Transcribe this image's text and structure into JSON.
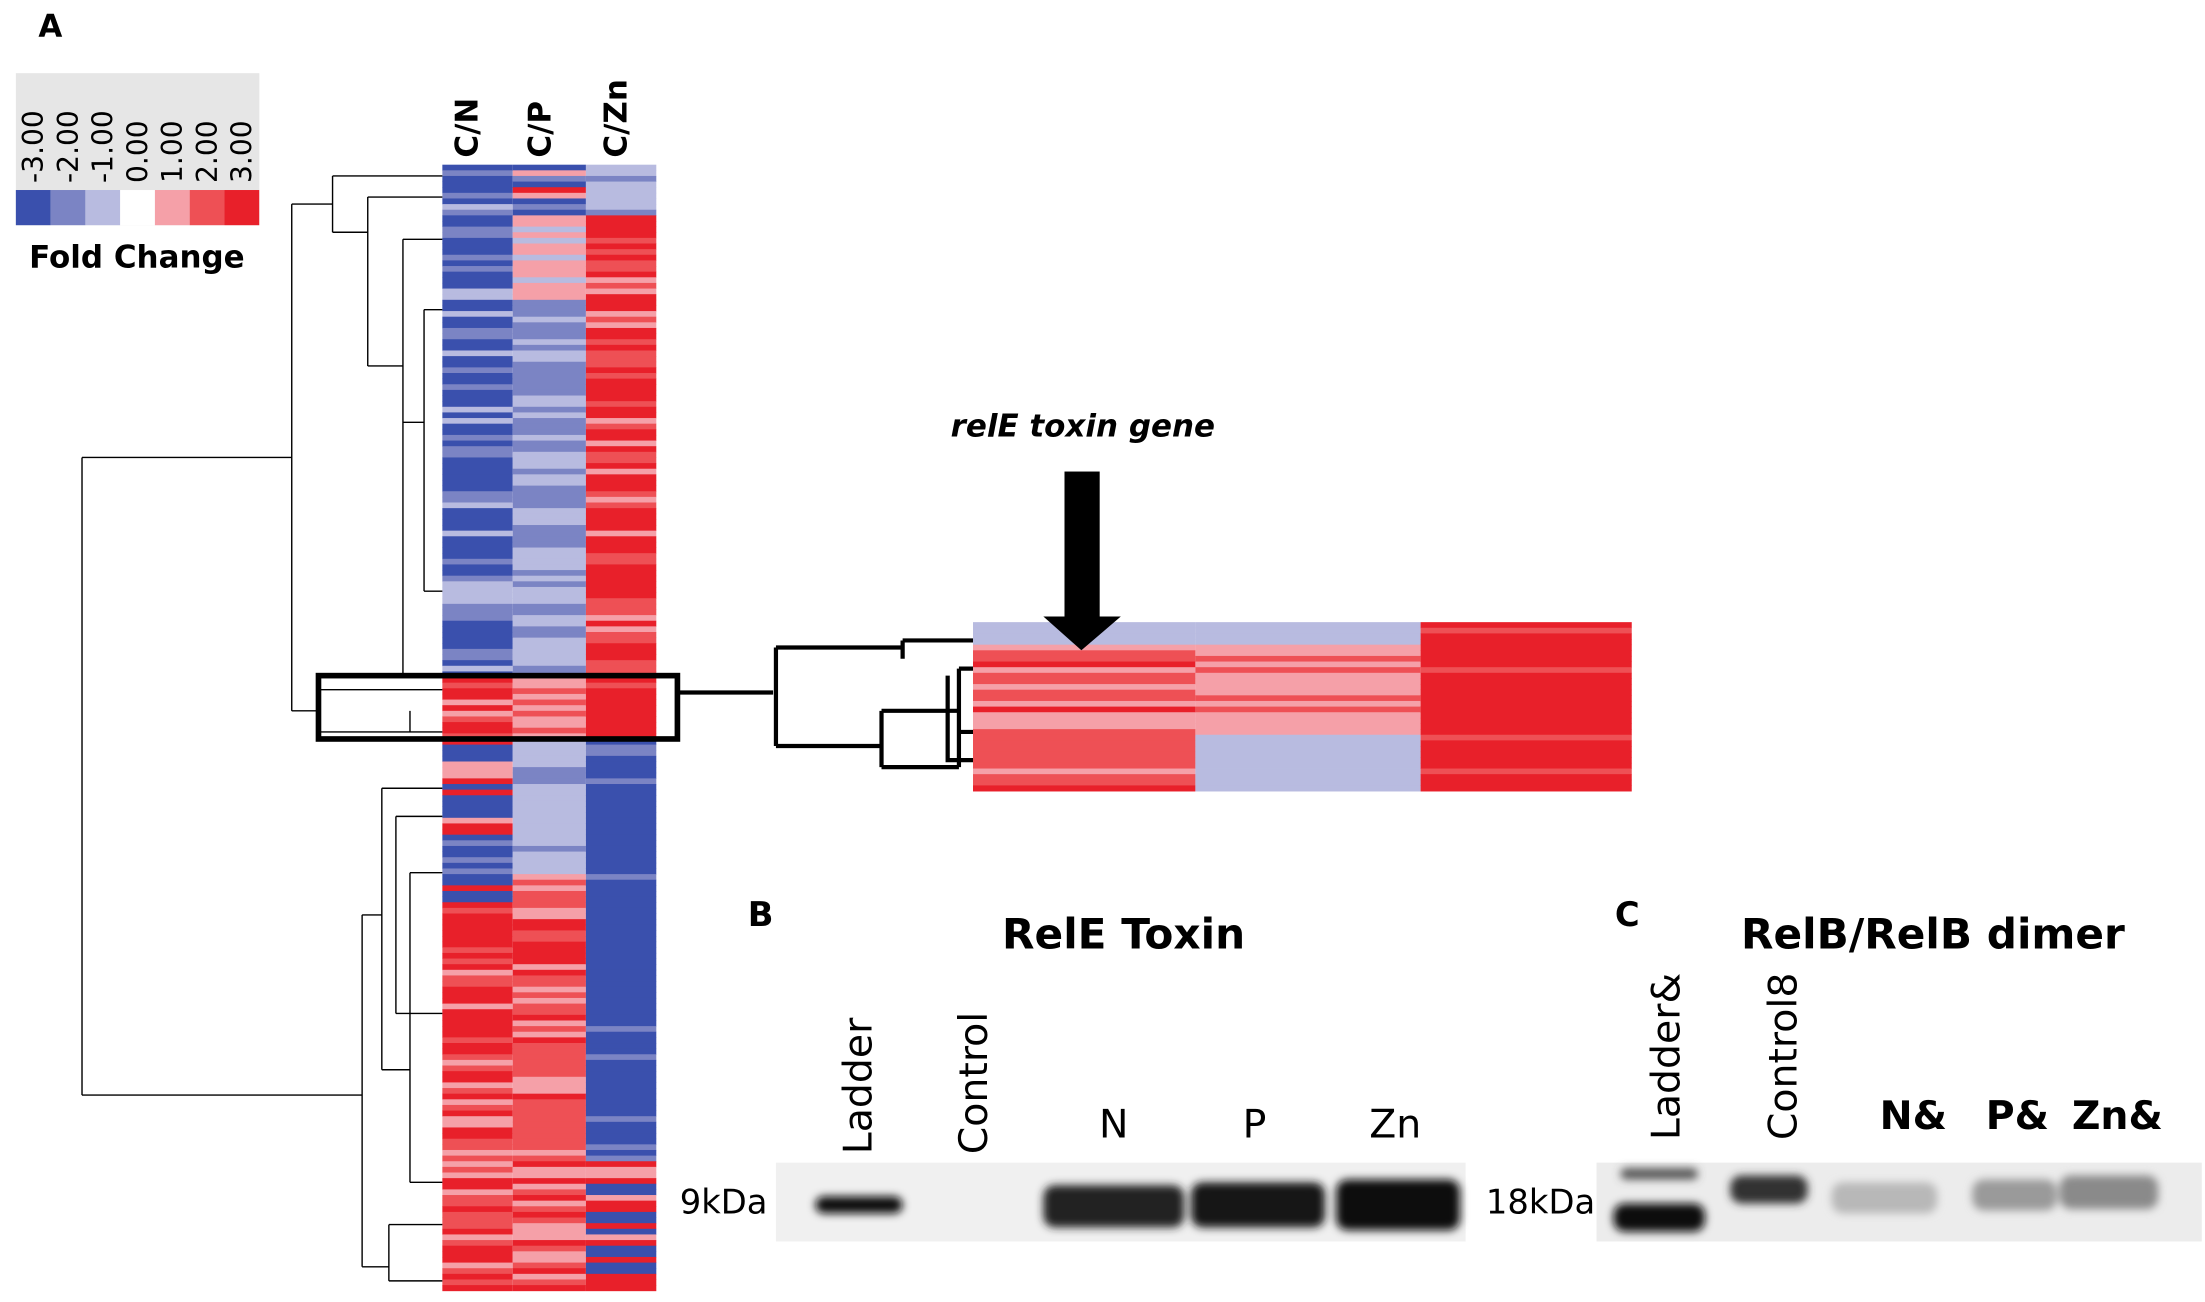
{
  "panel_a": {
    "label": "A",
    "legend": {
      "ticks": [
        "-3.00",
        "-2.00",
        "-1.00",
        "0.00",
        "1.00",
        "2.00",
        "3.00"
      ],
      "title": "Fold Change"
    },
    "columns": [
      "C/N",
      "C/P",
      "C/Zn"
    ],
    "annotation": "relE toxin gene"
  },
  "panel_b": {
    "label": "B",
    "title": "RelE Toxin",
    "lanes": [
      "Ladder",
      "Control",
      "N",
      "P",
      "Zn"
    ],
    "marker": "9kDa"
  },
  "panel_c": {
    "label": "C",
    "title": "RelB/RelB dimer",
    "lanes": [
      "Ladder&",
      "Control8",
      "N&",
      "P&",
      "Zn&"
    ],
    "marker": "18kDa"
  }
}
